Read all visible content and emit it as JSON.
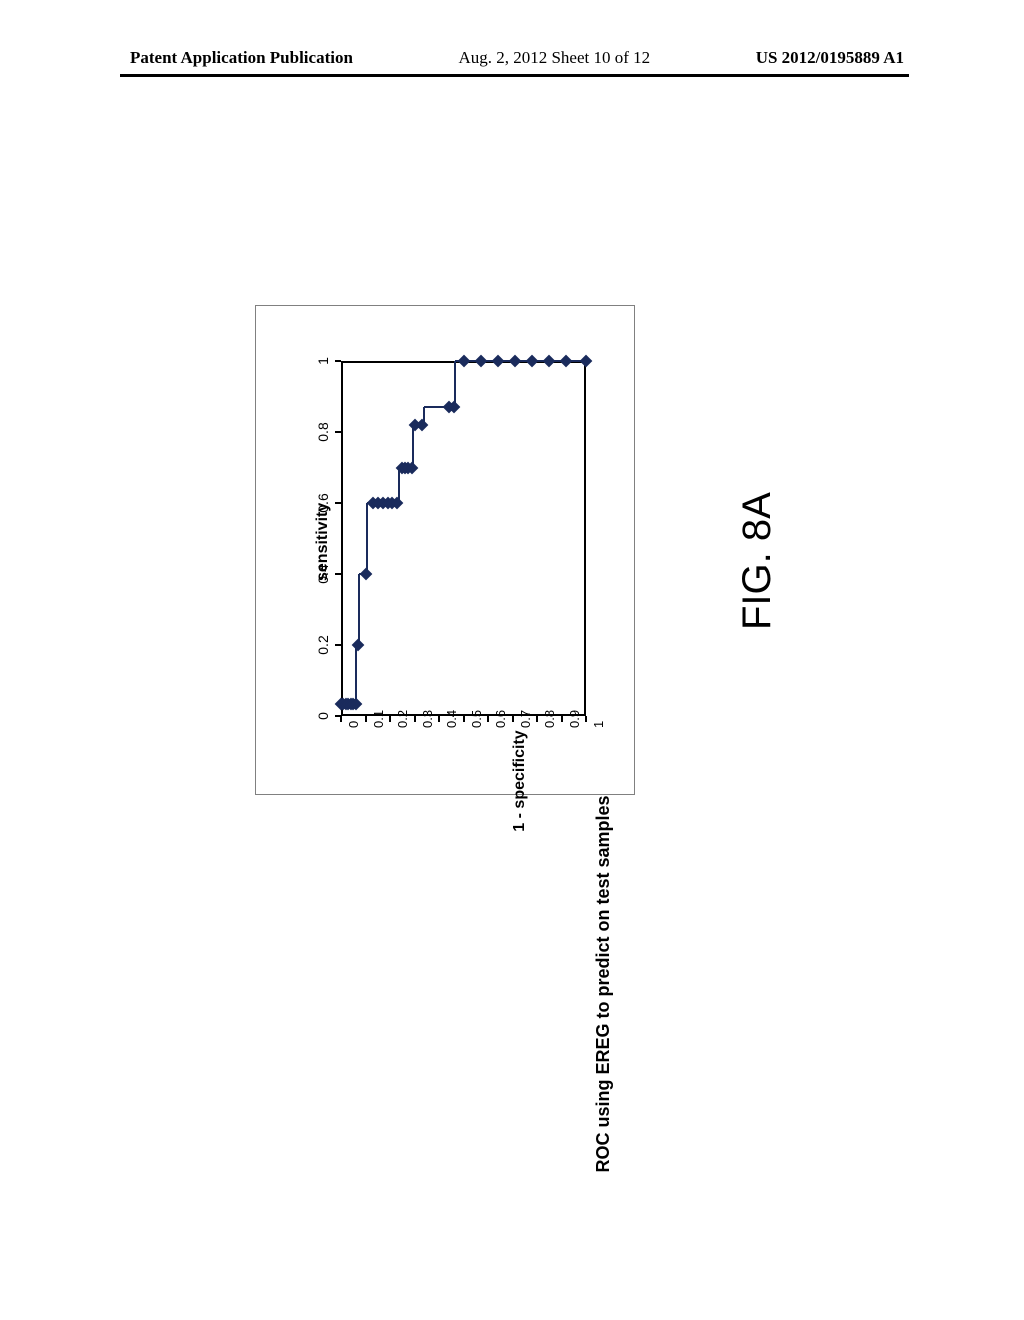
{
  "header": {
    "left": "Patent Application Publication",
    "center": "Aug. 2, 2012  Sheet 10 of 12",
    "right": "US 2012/0195889 A1"
  },
  "figure_label": "FIG. 8A",
  "chart": {
    "type": "scatter-step",
    "title": "ROC using EREG to predict on test samples",
    "xaxis_title": "1 - specificity",
    "yaxis_title": "sensitivity",
    "xlim": [
      0,
      1
    ],
    "ylim": [
      0,
      1
    ],
    "xticks": [
      0,
      0.1,
      0.2,
      0.3,
      0.4,
      0.5,
      0.6,
      0.7,
      0.8,
      0.9,
      1
    ],
    "yticks": [
      0,
      0.2,
      0.4,
      0.6,
      0.8,
      1
    ],
    "marker_color": "#1a2b5c",
    "line_color": "#1a2b5c",
    "line_width": 2,
    "marker_size": 9,
    "background_color": "#ffffff",
    "border_color": "#000000",
    "points": [
      [
        0.0,
        0.034
      ],
      [
        0.01,
        0.034
      ],
      [
        0.02,
        0.034
      ],
      [
        0.03,
        0.034
      ],
      [
        0.04,
        0.034
      ],
      [
        0.05,
        0.034
      ],
      [
        0.06,
        0.034
      ],
      [
        0.07,
        0.2
      ],
      [
        0.1,
        0.4
      ],
      [
        0.13,
        0.6
      ],
      [
        0.15,
        0.6
      ],
      [
        0.17,
        0.6
      ],
      [
        0.19,
        0.6
      ],
      [
        0.21,
        0.6
      ],
      [
        0.23,
        0.6
      ],
      [
        0.25,
        0.7
      ],
      [
        0.26,
        0.7
      ],
      [
        0.275,
        0.7
      ],
      [
        0.29,
        0.7
      ],
      [
        0.3,
        0.82
      ],
      [
        0.33,
        0.82
      ],
      [
        0.44,
        0.87
      ],
      [
        0.46,
        0.87
      ],
      [
        0.5,
        1.0
      ],
      [
        0.57,
        1.0
      ],
      [
        0.64,
        1.0
      ],
      [
        0.71,
        1.0
      ],
      [
        0.78,
        1.0
      ],
      [
        0.85,
        1.0
      ],
      [
        0.92,
        1.0
      ],
      [
        1.0,
        1.0
      ]
    ],
    "step_lines": [
      [
        [
          0.0,
          0.034
        ],
        [
          0.06,
          0.034
        ]
      ],
      [
        [
          0.06,
          0.034
        ],
        [
          0.06,
          0.2
        ]
      ],
      [
        [
          0.06,
          0.2
        ],
        [
          0.075,
          0.2
        ]
      ],
      [
        [
          0.075,
          0.2
        ],
        [
          0.075,
          0.4
        ]
      ],
      [
        [
          0.075,
          0.4
        ],
        [
          0.105,
          0.4
        ]
      ],
      [
        [
          0.105,
          0.4
        ],
        [
          0.105,
          0.6
        ]
      ],
      [
        [
          0.105,
          0.6
        ],
        [
          0.235,
          0.6
        ]
      ],
      [
        [
          0.235,
          0.6
        ],
        [
          0.235,
          0.7
        ]
      ],
      [
        [
          0.235,
          0.7
        ],
        [
          0.295,
          0.7
        ]
      ],
      [
        [
          0.295,
          0.7
        ],
        [
          0.295,
          0.82
        ]
      ],
      [
        [
          0.295,
          0.82
        ],
        [
          0.34,
          0.82
        ]
      ],
      [
        [
          0.34,
          0.82
        ],
        [
          0.34,
          0.87
        ]
      ],
      [
        [
          0.34,
          0.87
        ],
        [
          0.465,
          0.87
        ]
      ],
      [
        [
          0.465,
          0.87
        ],
        [
          0.465,
          1.0
        ]
      ],
      [
        [
          0.465,
          1.0
        ],
        [
          1.0,
          1.0
        ]
      ]
    ]
  }
}
